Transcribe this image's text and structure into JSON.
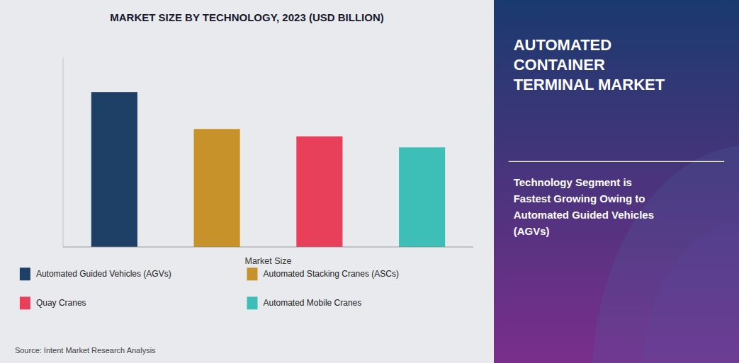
{
  "chart_data": {
    "type": "bar",
    "title": "MARKET SIZE BY TECHNOLOGY, 2023 (USD BILLION)",
    "categories": [
      "Automated Guided Vehicles (AGVs)",
      "Automated Stacking Cranes (ASCs)",
      "Quay Cranes",
      "Automated Mobile Cranes"
    ],
    "values": [
      4.2,
      3.2,
      3.0,
      2.7
    ],
    "colors": [
      "#1e3f66",
      "#c8922a",
      "#e8405a",
      "#3dbfb8"
    ],
    "x_label": "Market Size",
    "ylim": [
      0,
      5.124
    ],
    "tick_labels": false,
    "grid": false,
    "legend": "bottom",
    "annotations": [
      "AUTOMATED\nCONTAINER\nTERMINAL MARKET",
      "Technology Segment is\nFastest Growing Owing to\nAutomated Guided Vehicles\n(AGVs)",
      "Source: Intent Market Research Analysis"
    ]
  }
}
